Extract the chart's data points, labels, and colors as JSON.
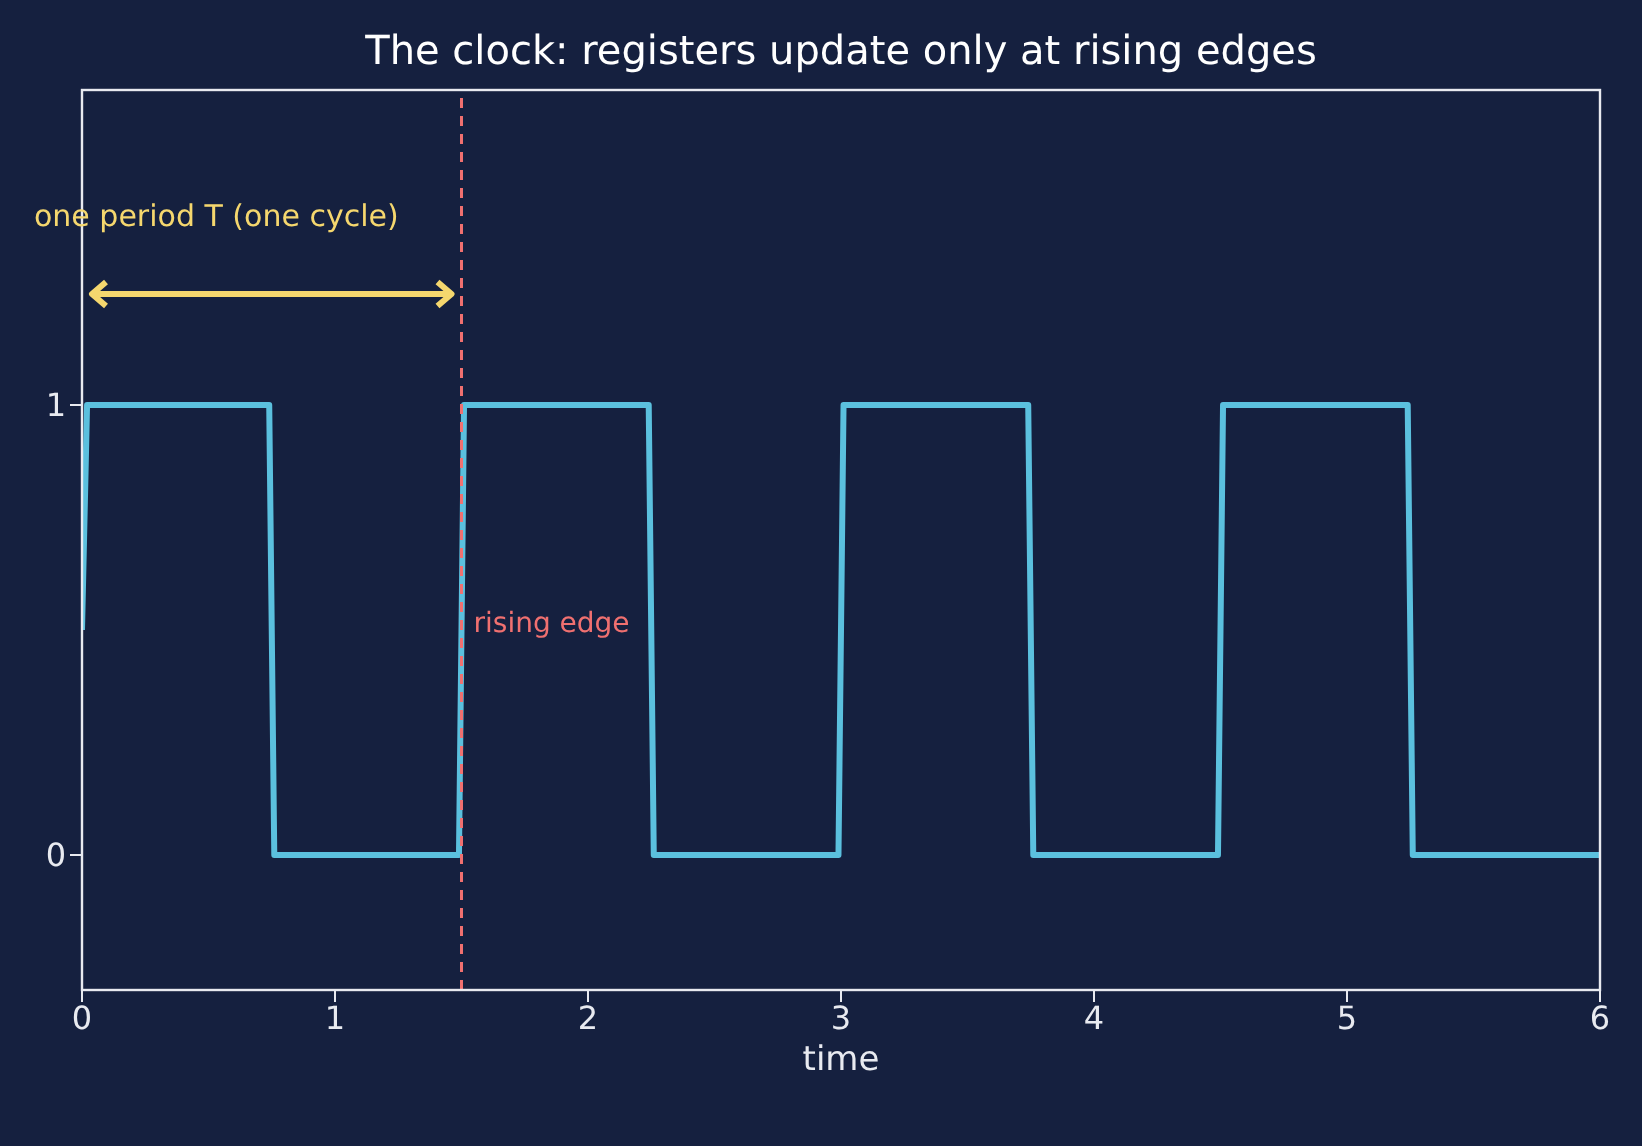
{
  "chart_data": {
    "type": "line",
    "title": "The clock: registers update only at rising edges",
    "xlabel": "time",
    "series": [
      {
        "color": "#5bc0de",
        "x": [
          0,
          0.02,
          0.74,
          0.76,
          1.49,
          1.51,
          2.24,
          2.26,
          2.99,
          3.01,
          3.74,
          3.76,
          4.49,
          4.51,
          5.24,
          5.26,
          6
        ],
        "values": [
          0.5,
          1,
          1,
          0,
          0,
          1,
          1,
          0,
          0,
          1,
          1,
          0,
          0,
          1,
          1,
          0,
          0
        ]
      }
    ],
    "xlim": [
      0,
      6
    ],
    "xticks": [
      0,
      1,
      2,
      3,
      4,
      5,
      6
    ],
    "ylim": [
      -0.3,
      1.7
    ],
    "yticks": [
      0,
      1
    ],
    "ref_lines": [
      {
        "axis": "x",
        "value": 1.5,
        "label": "rising edge",
        "color": "#f07070",
        "line_style": "dashed"
      }
    ],
    "annotations": [
      "one period T (one cycle)"
    ],
    "marker": "none",
    "line_style": "solid"
  }
}
